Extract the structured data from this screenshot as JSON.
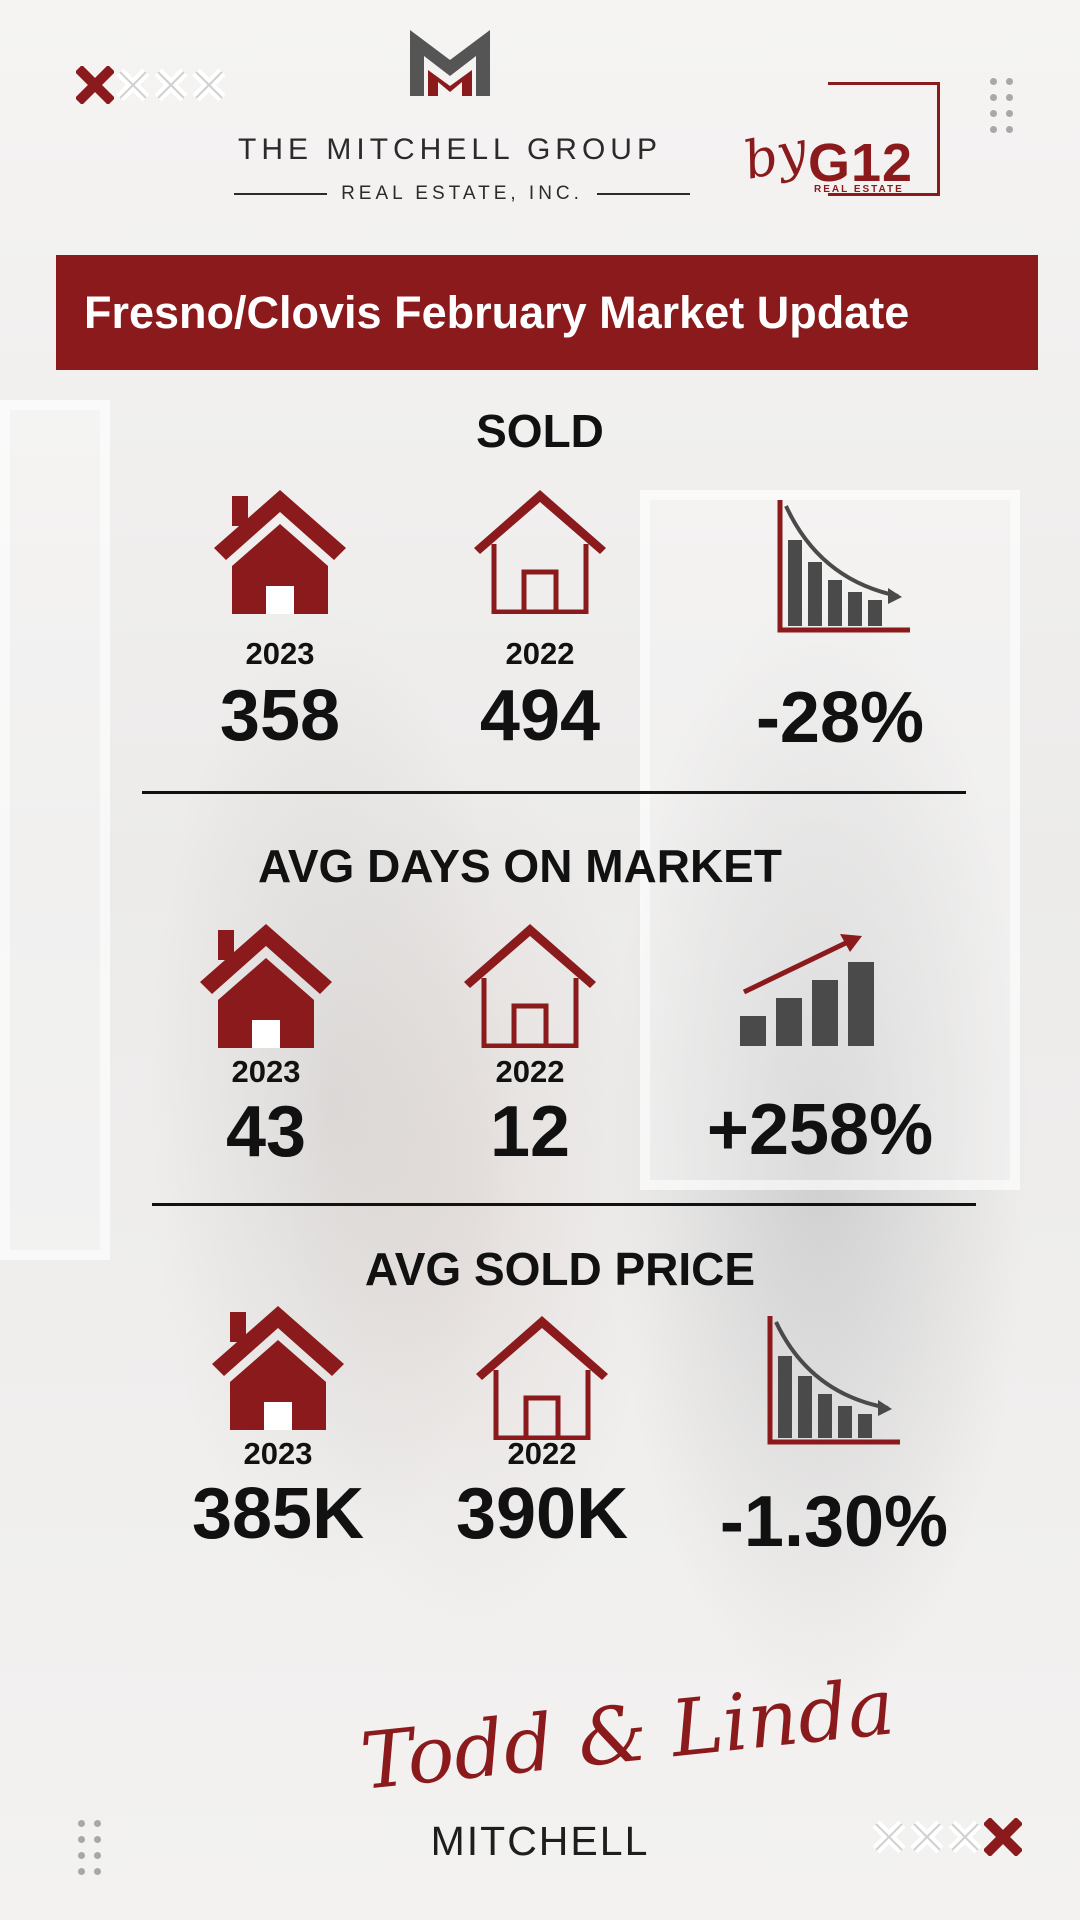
{
  "header": {
    "brand_name": "THE MITCHELL GROUP",
    "brand_subtitle": "REAL ESTATE, INC.",
    "partner_prefix": "by",
    "partner_name": "G12",
    "partner_subtitle": "REAL ESTATE"
  },
  "banner": {
    "title": "Fresno/Clovis February Market Update"
  },
  "sections": [
    {
      "title": "SOLD",
      "current": {
        "year": "2023",
        "value": "358"
      },
      "previous": {
        "year": "2022",
        "value": "494"
      },
      "change": {
        "value": "-28%",
        "trend": "down"
      }
    },
    {
      "title": "AVG DAYS ON MARKET",
      "current": {
        "year": "2023",
        "value": "43"
      },
      "previous": {
        "year": "2022",
        "value": "12"
      },
      "change": {
        "value": "+258%",
        "trend": "up"
      }
    },
    {
      "title": "AVG SOLD PRICE",
      "current": {
        "year": "2023",
        "value": "385K"
      },
      "previous": {
        "year": "2022",
        "value": "390K"
      },
      "change": {
        "value": "-1.30%",
        "trend": "down"
      }
    }
  ],
  "footer": {
    "signature": "Todd & Linda",
    "surname": "MITCHELL"
  },
  "colors": {
    "accent": "#8b1a1c",
    "text": "#111111",
    "icon_gray": "#4a4a4a",
    "background": "#f1f0ef"
  },
  "icons": [
    "filled-house-icon",
    "outline-house-icon",
    "declining-bar-chart-icon",
    "rising-bar-chart-icon",
    "x-mark-icon",
    "dot-grid-icon",
    "m-logo-icon"
  ]
}
